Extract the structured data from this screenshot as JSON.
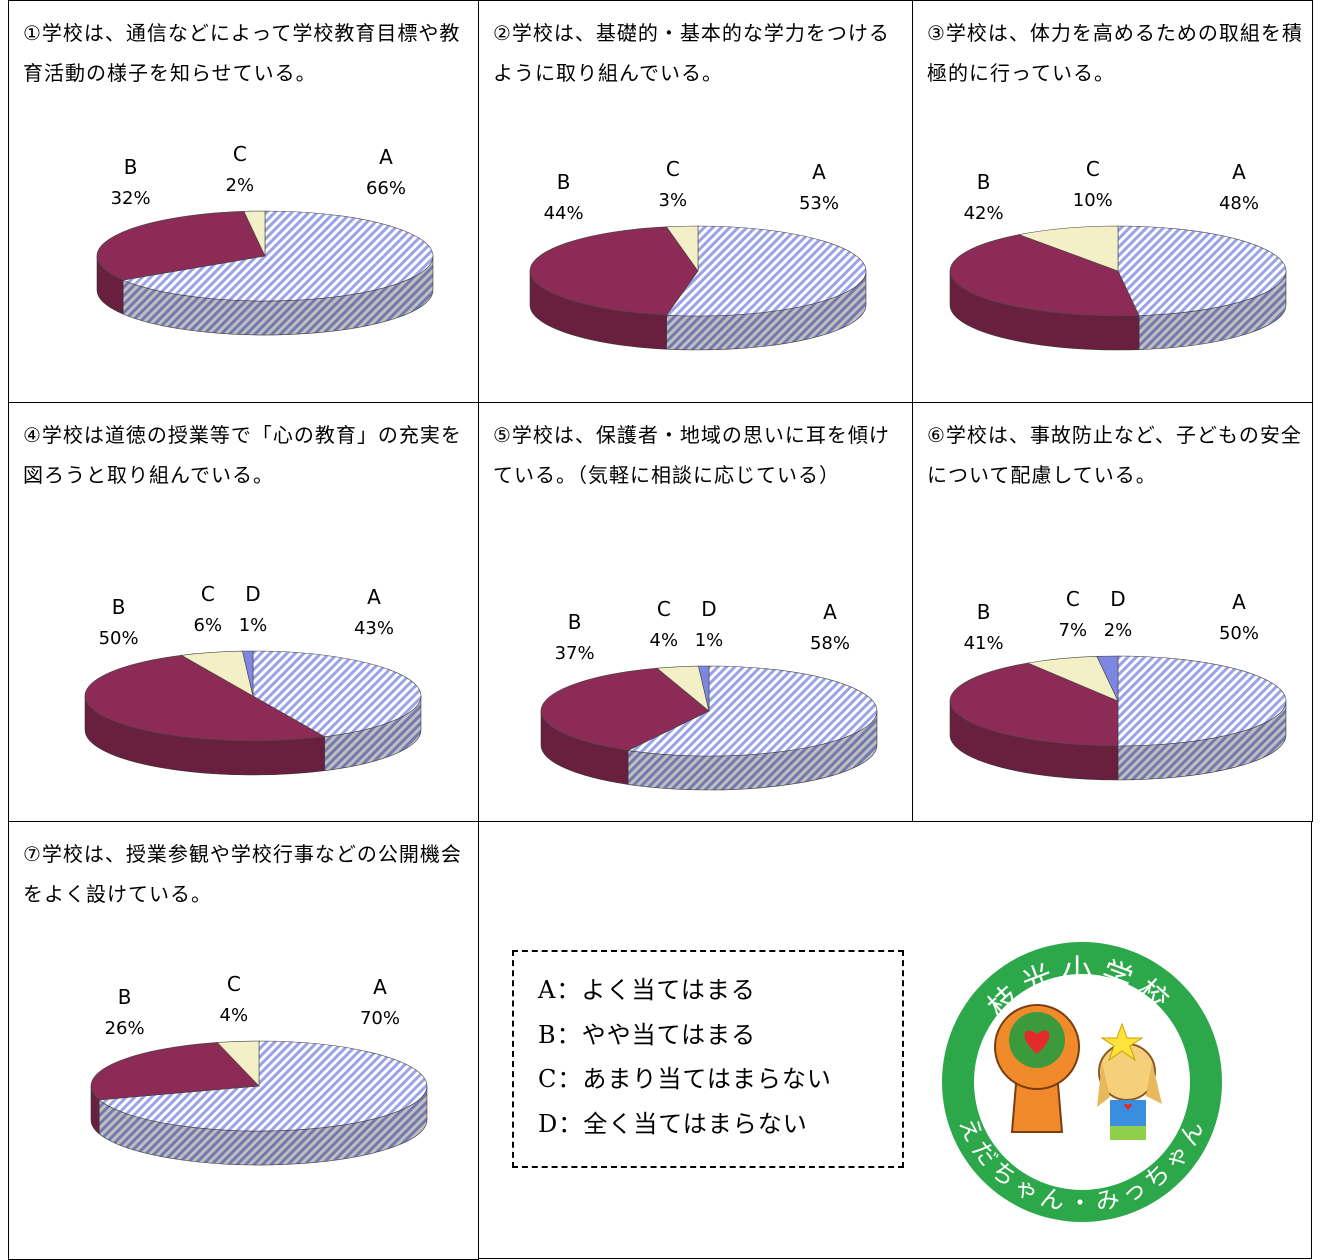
{
  "chart_data": [
    {
      "type": "pie",
      "title": "①学校は、通信などによって学校教育目標や教育活動の様子を知らせている。",
      "categories": [
        "A",
        "B",
        "C"
      ],
      "values": [
        66,
        32,
        2
      ],
      "value_labels": [
        "66%",
        "32%",
        "2%"
      ],
      "colors": [
        "#9aa2e8",
        "#8c2b55",
        "#f3efc6"
      ]
    },
    {
      "type": "pie",
      "title": "②学校は、基礎的・基本的な学力をつけるように取り組んでいる。",
      "categories": [
        "A",
        "B",
        "C"
      ],
      "values": [
        53,
        44,
        3
      ],
      "value_labels": [
        "53%",
        "44%",
        "3%"
      ],
      "colors": [
        "#9aa2e8",
        "#8c2b55",
        "#f3efc6"
      ]
    },
    {
      "type": "pie",
      "title": "③学校は、体力を高めるための取組を積極的に行っている。",
      "categories": [
        "A",
        "B",
        "C"
      ],
      "values": [
        48,
        42,
        10
      ],
      "value_labels": [
        "48%",
        "42%",
        "10%"
      ],
      "colors": [
        "#9aa2e8",
        "#8c2b55",
        "#f3efc6"
      ]
    },
    {
      "type": "pie",
      "title": "④学校は道徳の授業等で「心の教育」の充実を図ろうと取り組んでいる。",
      "categories": [
        "A",
        "B",
        "C",
        "D"
      ],
      "values": [
        43,
        50,
        6,
        1
      ],
      "value_labels": [
        "43%",
        "50%",
        "6%",
        "1%"
      ],
      "colors": [
        "#9aa2e8",
        "#8c2b55",
        "#f3efc6",
        "#7d86e0"
      ]
    },
    {
      "type": "pie",
      "title": "⑤学校は、保護者・地域の思いに耳を傾けている。（気軽に相談に応じている）",
      "categories": [
        "A",
        "B",
        "C",
        "D"
      ],
      "values": [
        58,
        37,
        4,
        1
      ],
      "value_labels": [
        "58%",
        "37%",
        "4%",
        "1%"
      ],
      "colors": [
        "#9aa2e8",
        "#8c2b55",
        "#f3efc6",
        "#7d86e0"
      ]
    },
    {
      "type": "pie",
      "title": "⑥学校は、事故防止など、子どもの安全について配慮している。",
      "categories": [
        "A",
        "B",
        "C",
        "D"
      ],
      "values": [
        50,
        41,
        7,
        2
      ],
      "value_labels": [
        "50%",
        "41%",
        "7%",
        "2%"
      ],
      "colors": [
        "#9aa2e8",
        "#8c2b55",
        "#f3efc6",
        "#7d86e0"
      ]
    },
    {
      "type": "pie",
      "title": "⑦学校は、授業参観や学校行事などの公開機会をよく設けている。",
      "categories": [
        "A",
        "B",
        "C"
      ],
      "values": [
        70,
        26,
        4
      ],
      "value_labels": [
        "70%",
        "26%",
        "4%"
      ],
      "colors": [
        "#9aa2e8",
        "#8c2b55",
        "#f3efc6"
      ]
    }
  ],
  "legend_box": [
    "A：よく当てはまる",
    "B：やや当てはまる",
    "C：あまり当てはまらない",
    "D：全く当てはまらない"
  ],
  "logo": {
    "top_text": "枝光小学校",
    "bottom_text": "えだちゃん・みっちゃん"
  }
}
